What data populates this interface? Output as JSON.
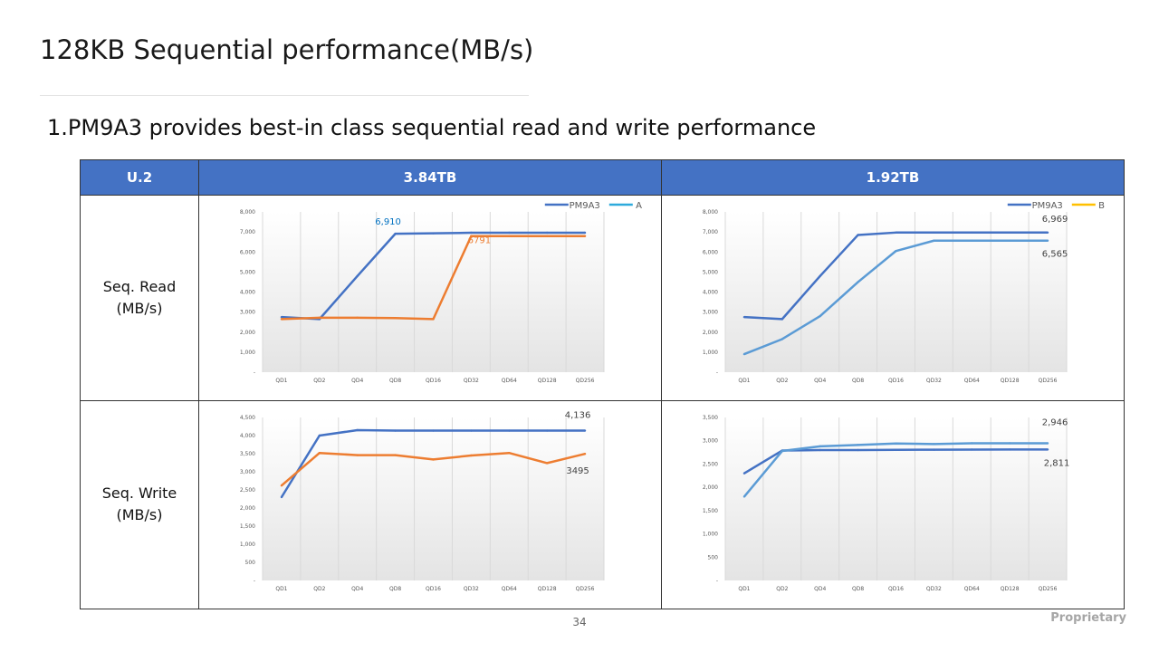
{
  "slide": {
    "title": "128KB Sequential performance(MB/s)",
    "subtitle": "1.PM9A3 provides best-in class sequential read and write performance",
    "page_number": "34",
    "footer": "Proprietary"
  },
  "table": {
    "corner": "U.2",
    "col1": "3.84TB",
    "col2": "1.92TB",
    "row1": "Seq. Read\n(MB/s)",
    "row2": "Seq. Write\n(MB/s)"
  },
  "chart_data": [
    {
      "type": "line",
      "categories": [
        "QD1",
        "QD2",
        "QD4",
        "QD8",
        "QD16",
        "QD32",
        "QD64",
        "QD128",
        "QD256"
      ],
      "ylim": [
        0,
        8000
      ],
      "yticks": [
        "-",
        "1,000",
        "2,000",
        "3,000",
        "4,000",
        "5,000",
        "6,000",
        "7,000",
        "8,000"
      ],
      "legend_position": "top-right",
      "grid": true,
      "series": [
        {
          "name": "PM9A3",
          "color": "#4472c4",
          "values": [
            2750,
            2650,
            4800,
            6910,
            6930,
            6960,
            6960,
            6960,
            6960
          ]
        },
        {
          "name": "A",
          "color": "#ed7d31",
          "values": [
            2650,
            2720,
            2720,
            2700,
            2650,
            6791,
            6791,
            6791,
            6791
          ]
        }
      ],
      "legend_colors": [
        "#4472c4",
        "#2eaadc"
      ],
      "annotations": [
        {
          "text": "6,910",
          "series": 0,
          "index": 3,
          "color": "#0070c0",
          "dx": -8,
          "dy": -10
        },
        {
          "text": "6791",
          "series": 1,
          "index": 5,
          "color": "#ed7d31",
          "dx": 9,
          "dy": 8
        }
      ]
    },
    {
      "type": "line",
      "categories": [
        "QD1",
        "QD2",
        "QD4",
        "QD8",
        "QD16",
        "QD32",
        "QD64",
        "QD128",
        "QD256"
      ],
      "ylim": [
        0,
        8000
      ],
      "yticks": [
        "-",
        "1,000",
        "2,000",
        "3,000",
        "4,000",
        "5,000",
        "6,000",
        "7,000",
        "8,000"
      ],
      "legend_position": "top-right",
      "grid": true,
      "series": [
        {
          "name": "PM9A3",
          "color": "#4472c4",
          "values": [
            2750,
            2650,
            4800,
            6850,
            6969,
            6969,
            6969,
            6969,
            6969
          ]
        },
        {
          "name": "B",
          "color": "#5b9bd5",
          "values": [
            900,
            1650,
            2800,
            4500,
            6050,
            6565,
            6565,
            6565,
            6565
          ]
        }
      ],
      "legend_colors": [
        "#4472c4",
        "#ffc000"
      ],
      "annotations": [
        {
          "text": "6,969",
          "series": 0,
          "index": 8,
          "color": "#404040",
          "dx": 8,
          "dy": -12
        },
        {
          "text": "6,565",
          "series": 1,
          "index": 8,
          "color": "#404040",
          "dx": 8,
          "dy": 18
        }
      ]
    },
    {
      "type": "line",
      "categories": [
        "QD1",
        "QD2",
        "QD4",
        "QD8",
        "QD16",
        "QD32",
        "QD64",
        "QD128",
        "QD256"
      ],
      "ylim": [
        0,
        4500
      ],
      "yticks": [
        "-",
        "500",
        "1,000",
        "1,500",
        "2,000",
        "2,500",
        "3,000",
        "3,500",
        "4,000",
        "4,500"
      ],
      "grid": true,
      "series": [
        {
          "color": "#4472c4",
          "values": [
            2300,
            4000,
            4150,
            4136,
            4136,
            4136,
            4136,
            4136,
            4136
          ]
        },
        {
          "color": "#ed7d31",
          "values": [
            2620,
            3520,
            3460,
            3460,
            3340,
            3450,
            3520,
            3240,
            3495
          ]
        }
      ],
      "annotations": [
        {
          "text": "4,136",
          "series": 0,
          "index": 8,
          "color": "#404040",
          "dx": -8,
          "dy": -14
        },
        {
          "text": "3495",
          "series": 1,
          "index": 8,
          "color": "#404040",
          "dx": -8,
          "dy": 22
        }
      ]
    },
    {
      "type": "line",
      "categories": [
        "QD1",
        "QD2",
        "QD4",
        "QD8",
        "QD16",
        "QD32",
        "QD64",
        "QD128",
        "QD256"
      ],
      "ylim": [
        0,
        3500
      ],
      "yticks": [
        "-",
        "500",
        "1,000",
        "1,500",
        "2,000",
        "2,500",
        "3,000",
        "3,500"
      ],
      "grid": true,
      "series": [
        {
          "color": "#4472c4",
          "values": [
            2300,
            2790,
            2800,
            2800,
            2805,
            2808,
            2810,
            2811,
            2811
          ]
        },
        {
          "color": "#5b9bd5",
          "values": [
            1800,
            2780,
            2880,
            2910,
            2940,
            2930,
            2946,
            2946,
            2946
          ]
        }
      ],
      "annotations": [
        {
          "text": "2,946",
          "series": 1,
          "index": 8,
          "color": "#404040",
          "dx": 8,
          "dy": -20
        },
        {
          "text": "2,811",
          "series": 0,
          "index": 8,
          "color": "#404040",
          "dx": 10,
          "dy": 18
        }
      ]
    }
  ]
}
